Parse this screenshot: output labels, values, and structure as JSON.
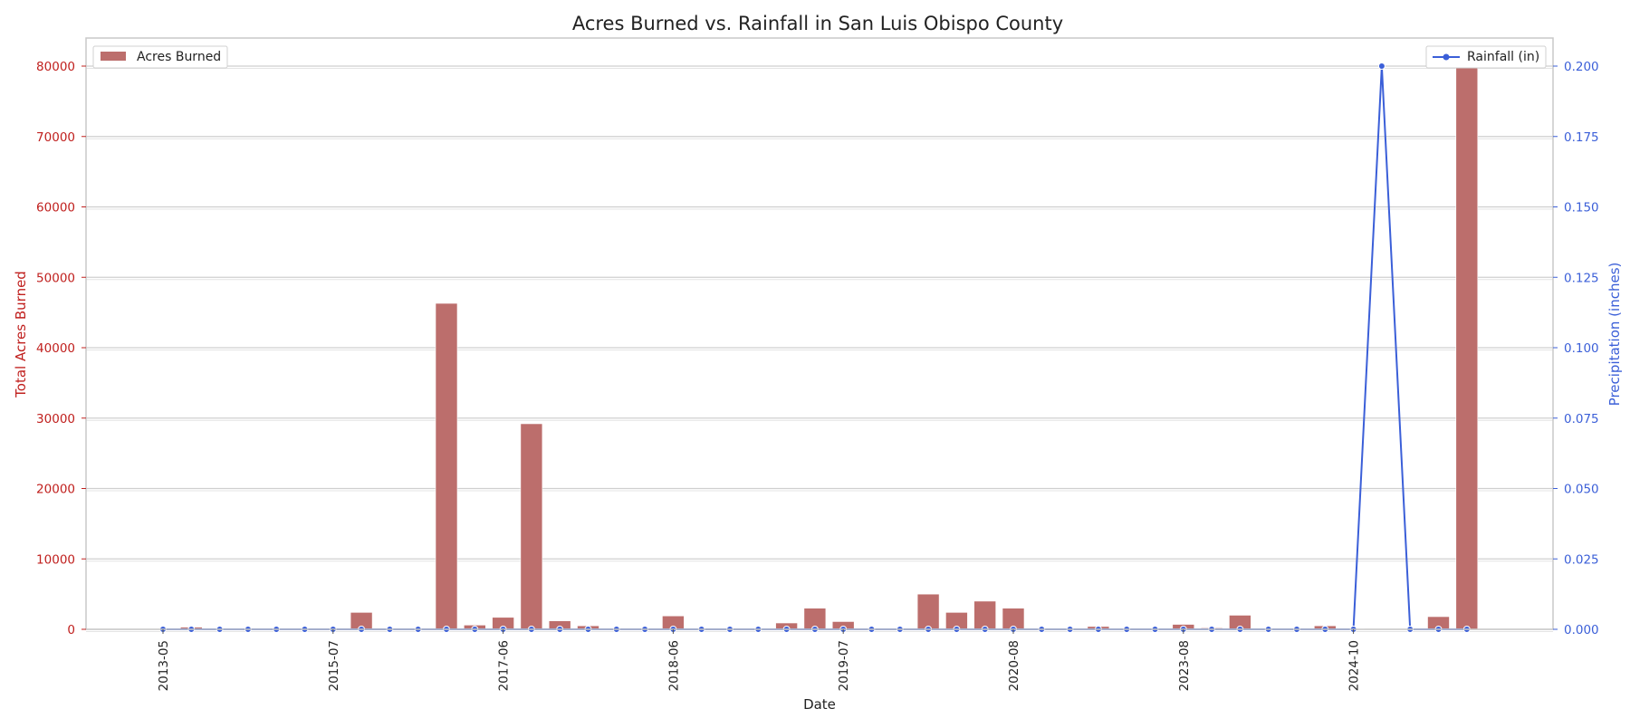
{
  "chart_data": {
    "type": "bar",
    "title": "Acres Burned vs. Rainfall in San Luis Obispo County",
    "xlabel": "Date",
    "ylabel": "Total Acres Burned",
    "y2label": "Precipitation (inches)",
    "ylim": [
      0,
      84000
    ],
    "y2lim": [
      0,
      0.21
    ],
    "yticks": [
      0,
      10000,
      20000,
      30000,
      40000,
      50000,
      60000,
      70000,
      80000
    ],
    "y2ticks": [
      "0.000",
      "0.025",
      "0.050",
      "0.075",
      "0.100",
      "0.125",
      "0.150",
      "0.175",
      "0.200"
    ],
    "xtick_labels": [
      {
        "index": 0,
        "label": "2013-05"
      },
      {
        "index": 6,
        "label": "2015-07"
      },
      {
        "index": 12,
        "label": "2017-06"
      },
      {
        "index": 18,
        "label": "2018-06"
      },
      {
        "index": 24,
        "label": "2019-07"
      },
      {
        "index": 30,
        "label": "2020-08"
      },
      {
        "index": 36,
        "label": "2023-08"
      },
      {
        "index": 42,
        "label": "2024-10"
      }
    ],
    "grid": true,
    "colors": {
      "bars": "#bc6e6c",
      "left_axis": "#c0201e",
      "line": "#3b5fd8",
      "grid": "#cfcfcf"
    },
    "series": [
      {
        "name": "Acres Burned",
        "kind": "bar",
        "axis": "left",
        "values": [
          0,
          300,
          100,
          80,
          60,
          80,
          50,
          2400,
          100,
          100,
          46300,
          600,
          1700,
          29200,
          1200,
          500,
          100,
          100,
          1900,
          50,
          50,
          100,
          900,
          3000,
          1100,
          100,
          100,
          5000,
          2400,
          4000,
          3000,
          100,
          100,
          400,
          100,
          100,
          700,
          200,
          2000,
          100,
          100,
          500,
          100,
          0,
          0,
          1800,
          80500
        ]
      },
      {
        "name": "Rainfall (in)",
        "kind": "line",
        "axis": "right",
        "values": [
          0,
          0,
          0,
          0,
          0,
          0,
          0,
          0,
          0,
          0,
          0,
          0,
          0,
          0,
          0,
          0,
          0,
          0,
          0,
          0,
          0,
          0,
          0,
          0,
          0,
          0,
          0,
          0,
          0,
          0,
          0,
          0,
          0,
          0,
          0,
          0,
          0,
          0,
          0,
          0,
          0,
          0,
          0,
          0.2,
          0,
          0,
          0
        ]
      }
    ],
    "legend_left": "Acres Burned",
    "legend_right": "Rainfall (in)"
  }
}
